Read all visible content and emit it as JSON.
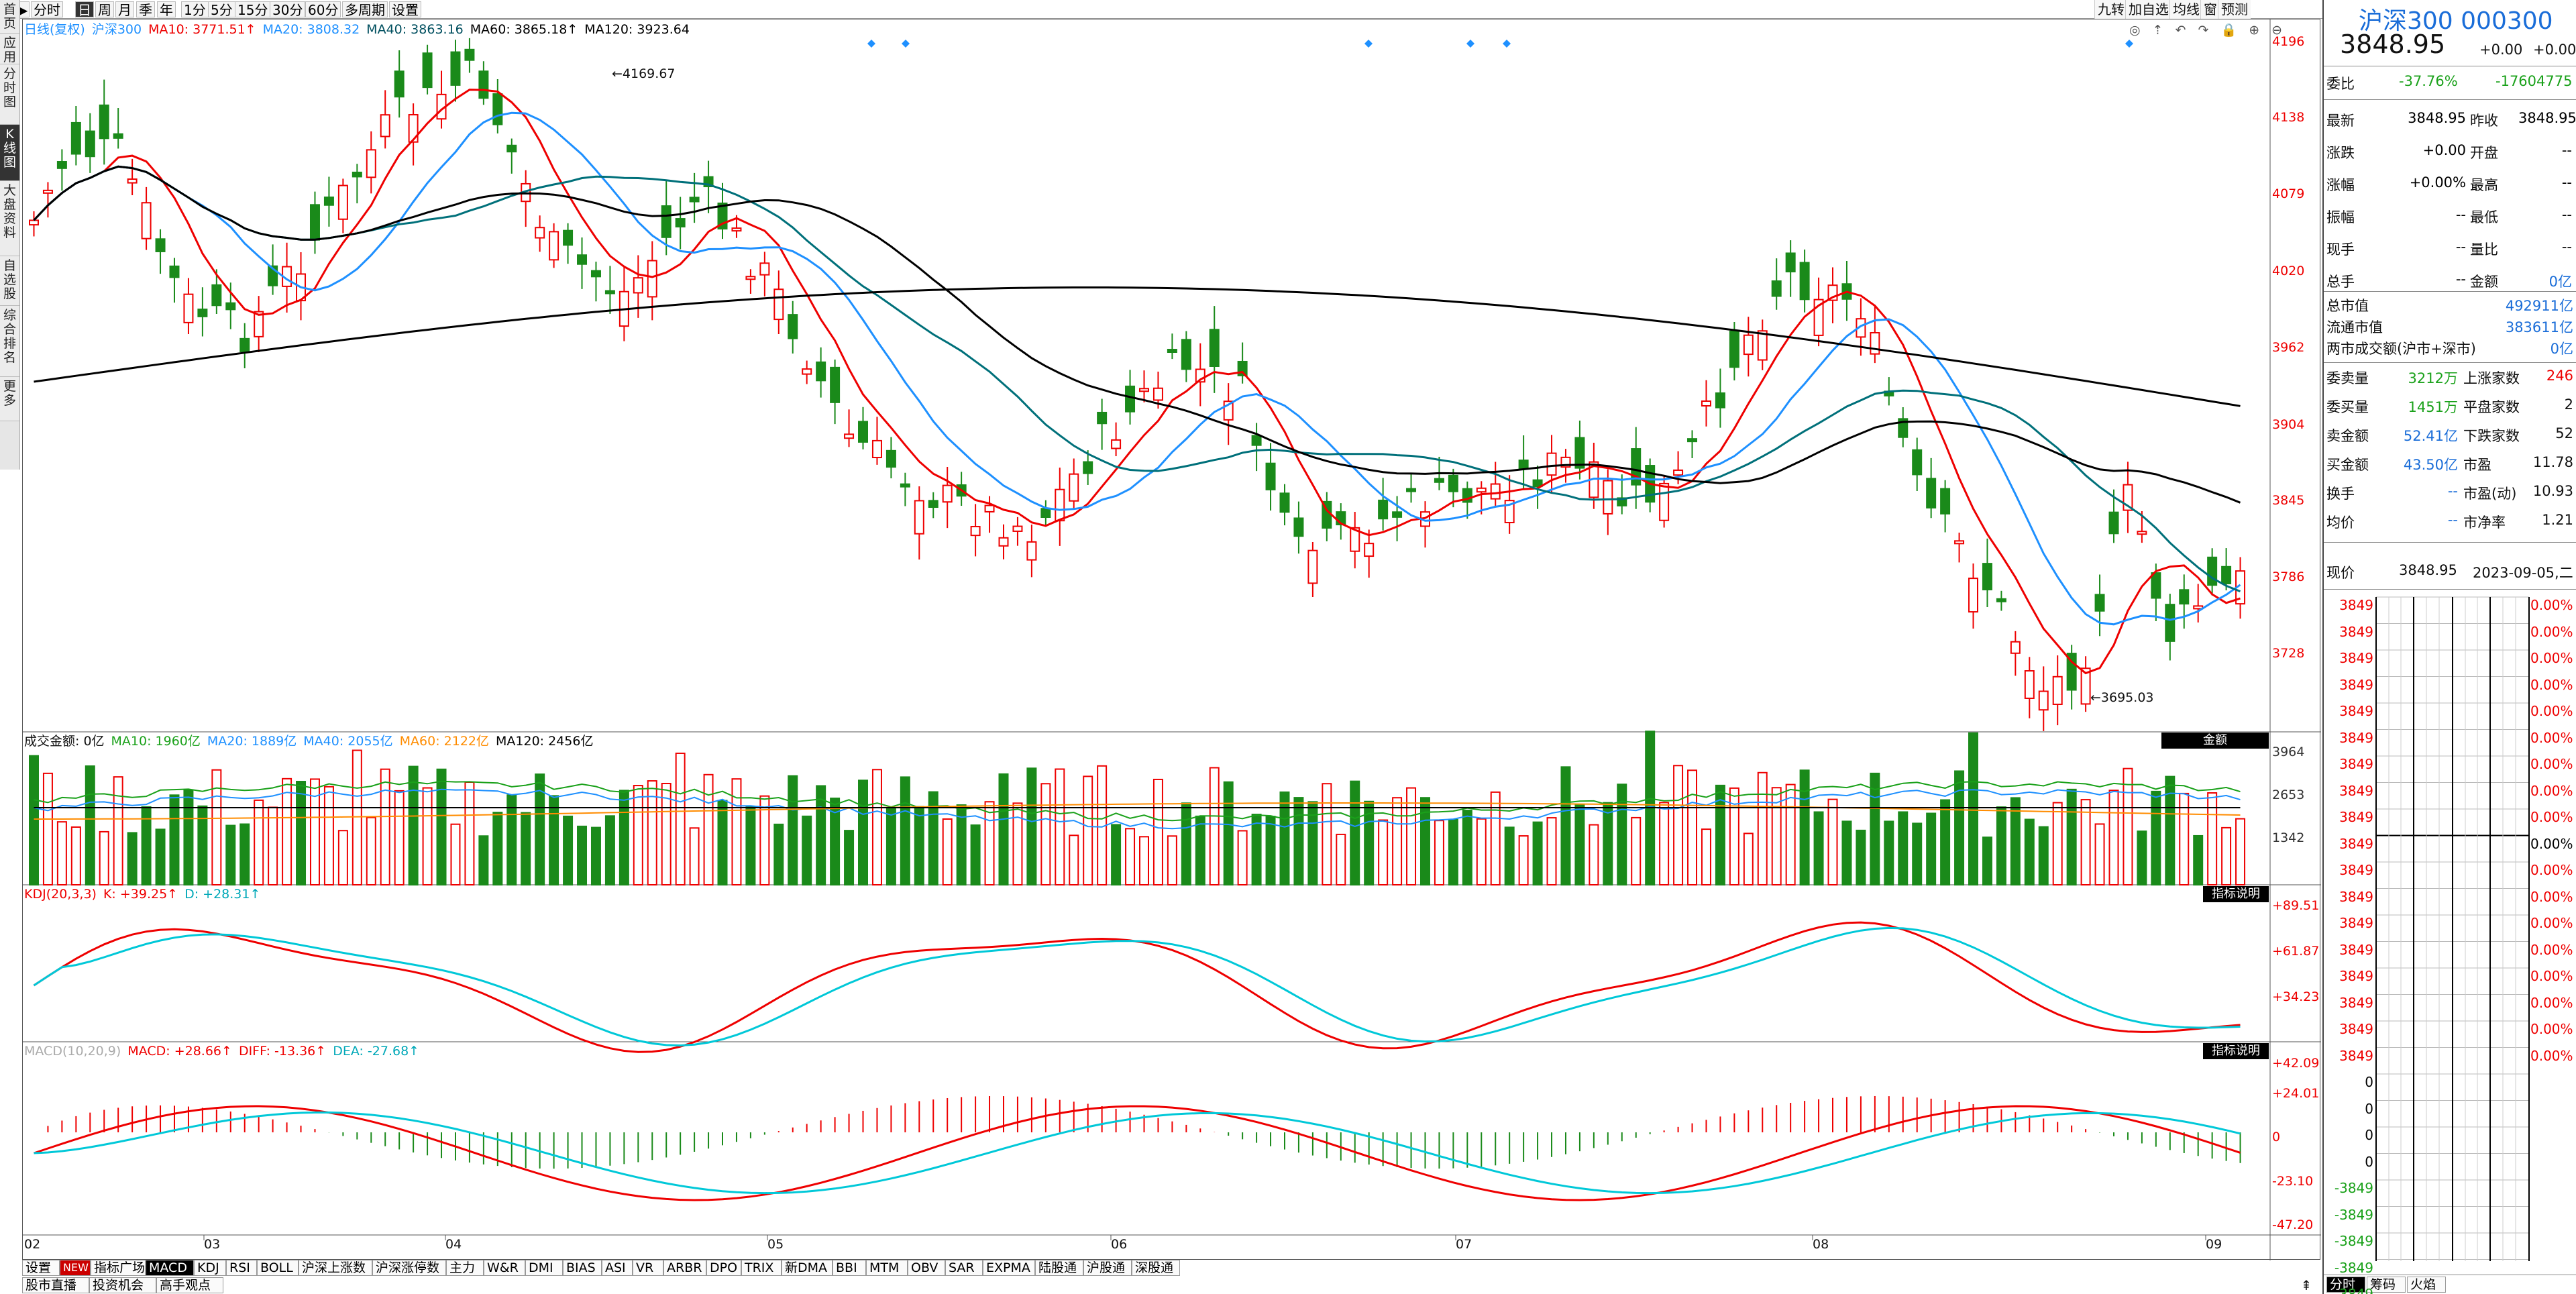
{
  "colors": {
    "up": "#e00000",
    "down": "#1a8a1a",
    "ma5": "#e00000",
    "ma10": "#1e90ff",
    "ma20": "#00aaaa",
    "ma40": "#004f5f",
    "ma120": "#000000",
    "kdj_k": "#e00000",
    "kdj_d": "#00c8d8",
    "macd_dea": "#00c8d8"
  },
  "toolbar": {
    "left": [
      "分时",
      "日",
      "周",
      "月",
      "季",
      "年",
      "1分",
      "5分",
      "15分",
      "30分",
      "60分",
      "多周期",
      "设置"
    ],
    "selected": "日",
    "right": [
      "九转",
      "加自选",
      "均线",
      "窗",
      "预测"
    ]
  },
  "sidebar": [
    {
      "label": "首页"
    },
    {
      "label": "应用"
    },
    {
      "label": "分时图"
    },
    {
      "label": "K线图"
    },
    {
      "label": "大盘资料"
    },
    {
      "label": "自选股"
    },
    {
      "label": "综合排名"
    },
    {
      "label": "更多"
    }
  ],
  "price_legend": {
    "title": "日线(复权)",
    "name": "沪深300",
    "ma10": "MA10: 3771.51↑",
    "ma20": "MA20: 3808.32",
    "ma40": "MA40: 3863.16",
    "ma60": "MA60: 3865.18↑",
    "ma120": "MA120: 3923.64"
  },
  "price_axis": [
    "4196",
    "4138",
    "4079",
    "4020",
    "3962",
    "3904",
    "3845",
    "3786",
    "3728"
  ],
  "annotations": {
    "high": "4169.67",
    "low": "3695.03"
  },
  "volume_legend": {
    "title": "成交金额: 0亿",
    "ma10": "MA10: 1960亿",
    "ma20": "MA20: 1889亿",
    "ma40": "MA40: 2055亿",
    "ma60": "MA60: 2122亿",
    "ma120": "MA120: 2456亿",
    "badge": "金额"
  },
  "volume_axis": [
    "3964",
    "2653",
    "1342"
  ],
  "kdj_legend": {
    "title": "KDJ(20,3,3)",
    "k": "K: +39.25↑",
    "d": "D: +28.31↑",
    "badge": "指标说明"
  },
  "kdj_axis": [
    "+89.51",
    "+61.87",
    "+34.23"
  ],
  "macd_legend": {
    "title": "MACD(10,20,9)",
    "macd": "MACD: +28.66↑",
    "diff": "DIFF: -13.36↑",
    "dea": "DEA: -27.68↑",
    "badge": "指标说明"
  },
  "macd_axis": [
    "+42.09",
    "+24.01",
    "0",
    "-23.10",
    "-47.20"
  ],
  "months": [
    "02",
    "03",
    "04",
    "05",
    "06",
    "07",
    "08",
    "09"
  ],
  "bottom_tabs": [
    "设置",
    "NEW",
    "指标广场",
    "MACD",
    "KDJ",
    "RSI",
    "BOLL",
    "沪深上涨数",
    "沪深涨停数",
    "主力",
    "W&R",
    "DMI",
    "BIAS",
    "ASI",
    "VR",
    "ARBR",
    "DPO",
    "TRIX",
    "新DMA",
    "BBI",
    "MTM",
    "OBV",
    "SAR",
    "EXPMA",
    "陆股通",
    "沪股通",
    "深股通"
  ],
  "bottom_tab_selected": "MACD",
  "bottom_tabs2": [
    "股市直播",
    "投资机会",
    "高手观点"
  ],
  "quote": {
    "title": "沪深300 000300",
    "price": "3848.95",
    "change": "+0.00",
    "pct": "+0.00%",
    "weibi_label": "委比",
    "weibi": "-37.76%",
    "weicha": "-17604775",
    "rows": [
      [
        "最新",
        "3848.95",
        "昨收",
        "3848.95"
      ],
      [
        "涨跌",
        "+0.00",
        "开盘",
        "--"
      ],
      [
        "涨幅",
        "+0.00%",
        "最高",
        "--"
      ],
      [
        "振幅",
        "--",
        "最低",
        "--"
      ],
      [
        "现手",
        "--",
        "量比",
        "--"
      ],
      [
        "总手",
        "--",
        "金额",
        "0亿"
      ]
    ],
    "cap_rows": [
      [
        "总市值",
        "492911亿"
      ],
      [
        "流通市值",
        "383611亿"
      ],
      [
        "两市成交额(沪市+深市)",
        "0亿"
      ]
    ],
    "stats": [
      [
        "委卖量",
        "3212万",
        "上涨家数",
        "246"
      ],
      [
        "委买量",
        "1451万",
        "平盘家数",
        "2"
      ],
      [
        "卖金额",
        "52.41亿",
        "下跌家数",
        "52"
      ],
      [
        "买金额",
        "43.50亿",
        "市盈",
        "11.78"
      ],
      [
        "换手",
        "--",
        "市盈(动)",
        "10.93"
      ],
      [
        "均价",
        "--",
        "市净率",
        "1.21"
      ]
    ],
    "tick_header": {
      "label": "现价",
      "price": "3848.95",
      "date": "2023-09-05,二"
    },
    "tick_left": [
      "3849",
      "3849",
      "3849",
      "3849",
      "3849",
      "3849",
      "3849",
      "3849",
      "3849",
      "3849",
      "3849",
      "3849",
      "3849",
      "3849",
      "3849",
      "3849",
      "3849",
      "3849",
      "0",
      "0",
      "0",
      "0",
      "-3849",
      "-3849",
      "-3849",
      "-3849",
      "-3849"
    ],
    "tick_right": [
      "0.00%",
      "0.00%",
      "0.00%",
      "0.00%",
      "0.00%",
      "0.00%",
      "0.00%",
      "0.00%",
      "0.00%",
      "0.00%",
      "0.00%",
      "0.00%",
      "0.00%",
      "0.00%",
      "0.00%",
      "0.00%",
      "0.00%",
      "0.00%"
    ],
    "bottom_tabs": [
      "分时",
      "筹码",
      "火焰"
    ]
  }
}
